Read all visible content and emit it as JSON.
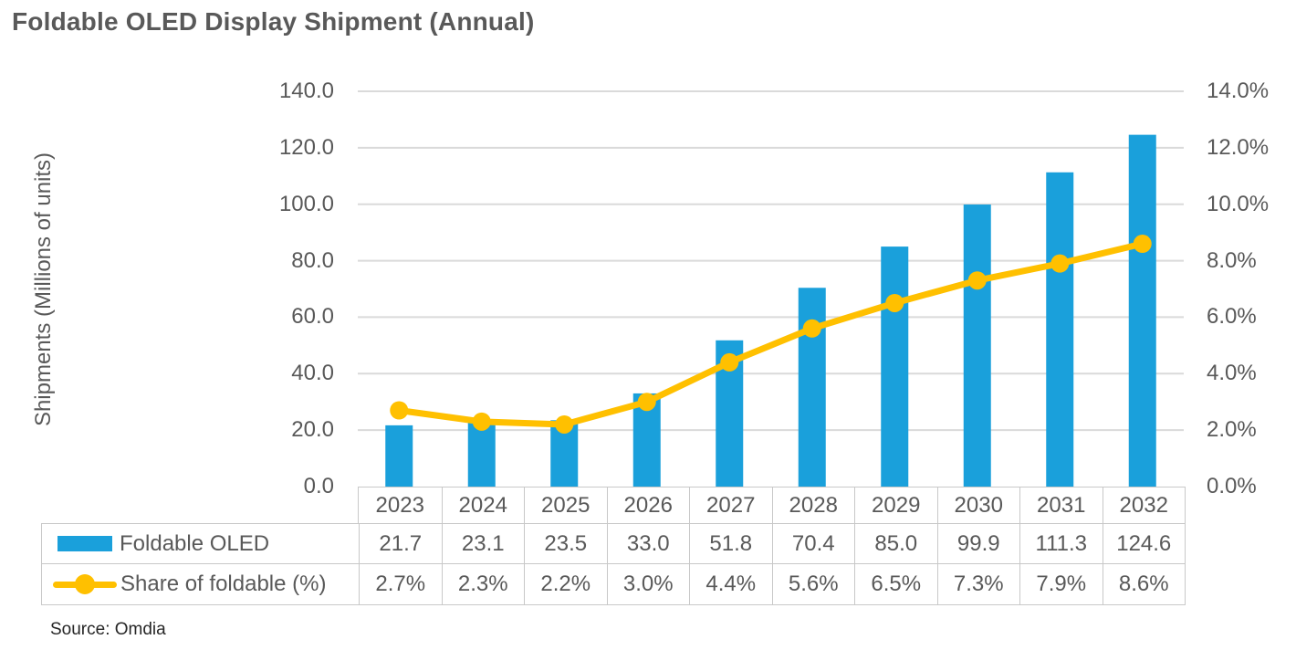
{
  "title": "Foldable OLED Display Shipment (Annual)",
  "source": "Source: Omdia",
  "colors": {
    "bar": "#1aa0db",
    "line": "#ffc000",
    "gridline": "#dadada",
    "table_border": "#c8c8c8",
    "text": "#595959"
  },
  "chart_data": {
    "type": "combo-bar-line",
    "title": "Foldable OLED Display Shipment (Annual)",
    "categories": [
      "2023",
      "2024",
      "2025",
      "2026",
      "2027",
      "2028",
      "2029",
      "2030",
      "2031",
      "2032"
    ],
    "series": [
      {
        "name": "Foldable OLED",
        "type": "bar",
        "axis": "left",
        "color": "#1aa0db",
        "values": [
          21.7,
          23.1,
          23.5,
          33.0,
          51.8,
          70.4,
          85.0,
          99.9,
          111.3,
          124.6
        ],
        "table_labels": [
          "21.7",
          "23.1",
          "23.5",
          "33.0",
          "51.8",
          "70.4",
          "85.0",
          "99.9",
          "111.3",
          "124.6"
        ]
      },
      {
        "name": "Share of foldable (%)",
        "type": "line",
        "axis": "right",
        "color": "#ffc000",
        "values": [
          2.7,
          2.3,
          2.2,
          3.0,
          4.4,
          5.6,
          6.5,
          7.3,
          7.9,
          8.6
        ],
        "table_labels": [
          "2.7%",
          "2.3%",
          "2.2%",
          "3.0%",
          "4.4%",
          "5.6%",
          "6.5%",
          "7.3%",
          "7.9%",
          "8.6%"
        ]
      }
    ],
    "left_axis": {
      "title": "Shipments (Millions of units)",
      "min": 0,
      "max": 140,
      "step": 20,
      "tick_labels": [
        "0.0",
        "20.0",
        "40.0",
        "60.0",
        "80.0",
        "100.0",
        "120.0",
        "140.0"
      ]
    },
    "right_axis": {
      "min": 0,
      "max": 14,
      "step": 2,
      "tick_labels": [
        "0.0%",
        "2.0%",
        "4.0%",
        "6.0%",
        "8.0%",
        "10.0%",
        "12.0%",
        "14.0%"
      ]
    },
    "grid": true,
    "legend_position": "table-left",
    "source": "Source: Omdia"
  }
}
